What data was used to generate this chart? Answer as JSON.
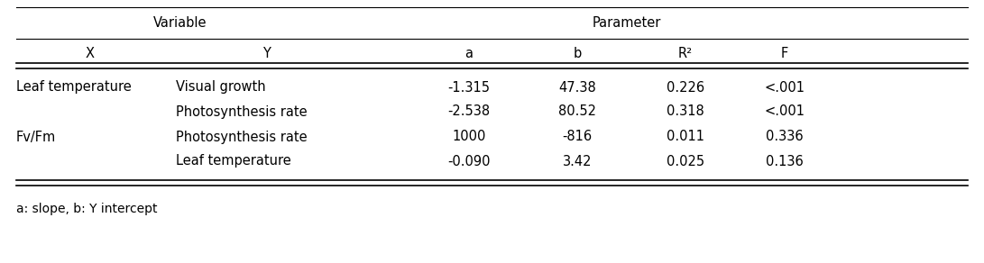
{
  "title_row_left": "Variable",
  "title_row_right": "Parameter",
  "header_row": [
    "X",
    "Y",
    "a",
    "b",
    "R²",
    "F"
  ],
  "rows": [
    [
      "Leaf temperature",
      "Visual growth",
      "-1.315",
      "47.38",
      "0.226",
      "<.001"
    ],
    [
      "",
      "Photosynthesis rate",
      "-2.538",
      "80.52",
      "0.318",
      "<.001"
    ],
    [
      "Fv/Fm",
      "Photosynthesis rate",
      "1000",
      "-816",
      "0.011",
      "0.336"
    ],
    [
      "",
      "Leaf temperature",
      "-0.090",
      "3.42",
      "0.025",
      "0.136"
    ]
  ],
  "footnote": "a: slope, b: Y intercept",
  "background_color": "#ffffff",
  "text_color": "#000000",
  "font_size": 10.5
}
